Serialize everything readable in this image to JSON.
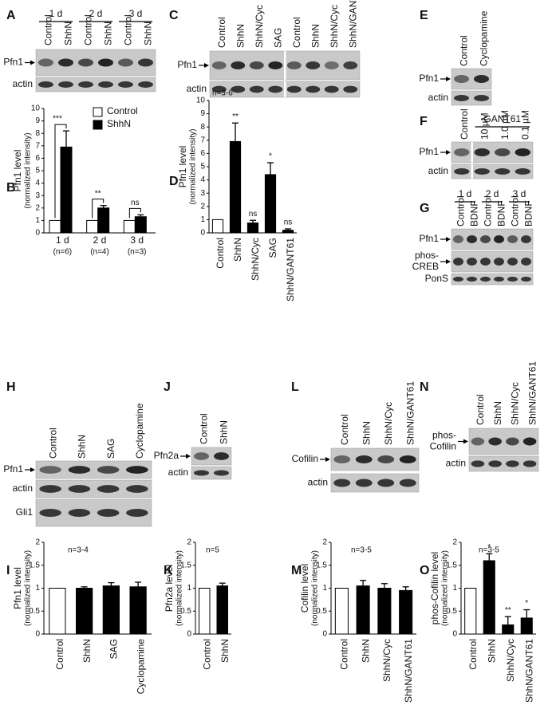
{
  "panel_labels": {
    "A": "A",
    "B": "B",
    "C": "C",
    "D": "D",
    "E": "E",
    "F": "F",
    "G": "G",
    "H": "H",
    "I": "I",
    "J": "J",
    "K": "K",
    "L": "L",
    "M": "M",
    "N": "N",
    "O": "O"
  },
  "blots": {
    "A": {
      "groups": [
        "1 d",
        "2 d",
        "3 d"
      ],
      "lanes": [
        "Control",
        "ShhN",
        "Control",
        "ShhN",
        "Control",
        "ShhN"
      ],
      "rows": [
        "Pfn1",
        "actin"
      ]
    },
    "C": {
      "lanes": [
        "Control",
        "ShhN",
        "ShhN/Cyc",
        "SAG",
        "Control",
        "ShhN",
        "ShhN/Cyc",
        "ShhN/GANT61"
      ],
      "rows": [
        "Pfn1",
        "actin"
      ]
    },
    "E": {
      "lanes": [
        "Control",
        "Cyclopamine"
      ],
      "rows": [
        "Pfn1",
        "actin"
      ]
    },
    "F": {
      "groups": [
        "GANT61"
      ],
      "lanes": [
        "Control",
        "10 µM",
        "1.0 µM",
        "0.1 µM"
      ],
      "rows": [
        "Pfn1",
        "actin"
      ]
    },
    "G": {
      "groups": [
        "1 d",
        "2 d",
        "3 d"
      ],
      "lanes": [
        "Control",
        "BDNF",
        "Control",
        "BDNF",
        "Control",
        "BDNF"
      ],
      "rows": [
        "Pfn1",
        [
          "phos-",
          "CREB"
        ],
        "PonS"
      ]
    },
    "H": {
      "lanes": [
        "Control",
        "ShhN",
        "SAG",
        "Cyclopamine"
      ],
      "rows": [
        "Pfn1",
        "actin",
        "Gli1"
      ]
    },
    "J": {
      "lanes": [
        "Control",
        "ShhN"
      ],
      "rows": [
        "Pfn2a",
        "actin"
      ]
    },
    "L": {
      "lanes": [
        "Control",
        "ShhN",
        "ShhN/Cyc",
        "ShhN/GANT61"
      ],
      "rows": [
        "Cofilin",
        "actin"
      ]
    },
    "N": {
      "lanes": [
        "Control",
        "ShhN",
        "ShhN/Cyc",
        "ShhN/GANT61"
      ],
      "rows": [
        [
          "phos-",
          "Cofilin"
        ],
        "actin"
      ]
    }
  },
  "chart_data": [
    {
      "type": "grouped_bar",
      "ylabel": "Pfn1 level",
      "ylabel_sub": "(normalized intensity)",
      "categories": [
        "1 d",
        "2 d",
        "3 d"
      ],
      "category_notes": [
        "(n=6)",
        "(n=4)",
        "(n=3)"
      ],
      "series": [
        {
          "name": "Control",
          "color": "#ffffff",
          "values": [
            1,
            1,
            1
          ],
          "errors": [
            null,
            null,
            null
          ]
        },
        {
          "name": "ShhN",
          "color": "#000000",
          "values": [
            6.9,
            2.0,
            1.3
          ],
          "errors": [
            1.3,
            0.2,
            0.15
          ]
        }
      ],
      "significance": [
        "***",
        "**",
        "ns"
      ],
      "legend": "upper right",
      "ylim": [
        0,
        10
      ],
      "yticks": [
        0,
        1,
        2,
        3,
        4,
        5,
        6,
        7,
        8,
        9,
        10
      ]
    },
    {
      "type": "bar",
      "ylabel": "Pfn1 level",
      "ylabel_sub": "(normalized intensity)",
      "annotation": "n=3-6",
      "categories": [
        "Control",
        "ShhN",
        "ShhN/Cyc",
        "SAG",
        "ShhN/GANT61"
      ],
      "values": [
        1,
        6.9,
        0.75,
        4.4,
        0.2
      ],
      "errors": [
        null,
        1.4,
        0.2,
        0.9,
        0.1
      ],
      "colors": [
        "#ffffff",
        "#000000",
        "#000000",
        "#000000",
        "#000000"
      ],
      "significance": [
        null,
        "**",
        "ns",
        "*",
        "ns"
      ],
      "ylim": [
        0,
        10
      ],
      "yticks": [
        0,
        1,
        2,
        3,
        4,
        5,
        6,
        7,
        8,
        9,
        10
      ]
    },
    {
      "type": "bar",
      "ylabel": "Pfn1 level",
      "ylabel_sub": "(normalized intensity)",
      "annotation": "n=3-4",
      "categories": [
        "Control",
        "ShhN",
        "SAG",
        "Cyclopamine"
      ],
      "values": [
        1,
        1.0,
        1.05,
        1.03
      ],
      "errors": [
        null,
        0.03,
        0.07,
        0.1
      ],
      "colors": [
        "#ffffff",
        "#000000",
        "#000000",
        "#000000"
      ],
      "ylim": [
        0,
        2
      ],
      "yticks": [
        0,
        0.5,
        1,
        1.5,
        2
      ]
    },
    {
      "type": "bar",
      "ylabel": "Pfn2a level",
      "ylabel_sub": "(normalized intensity)",
      "annotation": "n=5",
      "categories": [
        "Control",
        "ShhN"
      ],
      "values": [
        1,
        1.05
      ],
      "errors": [
        null,
        0.06
      ],
      "colors": [
        "#ffffff",
        "#000000"
      ],
      "ylim": [
        0,
        2
      ],
      "yticks": [
        0,
        0.5,
        1,
        1.5,
        2
      ]
    },
    {
      "type": "bar",
      "ylabel": "Cofilin level",
      "ylabel_sub": "(normalized intensity)",
      "annotation": "n=3-5",
      "categories": [
        "Control",
        "ShhN",
        "ShhN/Cyc",
        "ShhN/GANT61"
      ],
      "values": [
        1,
        1.05,
        1.0,
        0.95
      ],
      "errors": [
        null,
        0.12,
        0.1,
        0.08
      ],
      "colors": [
        "#ffffff",
        "#000000",
        "#000000",
        "#000000"
      ],
      "ylim": [
        0,
        2
      ],
      "yticks": [
        0,
        0.5,
        1,
        1.5,
        2
      ]
    },
    {
      "type": "bar",
      "ylabel": "phos-Cofilin level",
      "ylabel_sub": "(normalized intensity)",
      "annotation": "n=3-5",
      "categories": [
        "Control",
        "ShhN",
        "ShhN/Cyc",
        "ShhN/GANT61"
      ],
      "values": [
        1,
        1.6,
        0.2,
        0.35
      ],
      "errors": [
        null,
        0.15,
        0.18,
        0.18
      ],
      "colors": [
        "#ffffff",
        "#000000",
        "#000000",
        "#000000"
      ],
      "significance": [
        null,
        "*",
        "**",
        "*"
      ],
      "ylim": [
        0,
        2
      ],
      "yticks": [
        0,
        0.5,
        1,
        1.5,
        2
      ]
    }
  ]
}
